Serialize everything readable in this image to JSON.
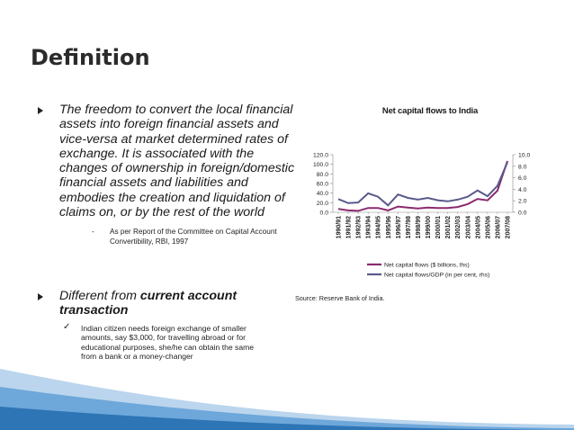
{
  "slide": {
    "title": "Definition",
    "bullet1": {
      "text": "The freedom to convert the local financial assets into foreign financial assets and vice-versa at market determined rates of exchange. It is associated with the changes of ownership in foreign/domestic financial assets and liabilities and embodies the creation and liquidation of claims on, or by the rest of the world",
      "sub_marker": "-",
      "sub_text": "As per Report of the Committee on Capital Account Convertibility, RBI, 1997"
    },
    "bullet2": {
      "text_prefix": "Different from ",
      "text_bold": "current account transaction",
      "sub_marker": "✓",
      "sub_text": "Indian citizen needs foreign exchange of smaller amounts, say $3,000, for travelling abroad or for educational purposes, she/he can obtain the same from a bank or a money-changer"
    },
    "source": "Source: Reserve Bank of India."
  },
  "chart_data": {
    "type": "line",
    "title": "Net capital flows to India",
    "categories": [
      "1990/91",
      "1991/92",
      "1992/93",
      "1993/94",
      "1994/95",
      "1995/96",
      "1996/97",
      "1997/98",
      "1998/99",
      "1999/00",
      "2000/01",
      "2001/02",
      "2002/03",
      "2003/04",
      "2004/05",
      "2005/06",
      "2006/07",
      "2007/08"
    ],
    "series": [
      {
        "name": "Net capital flows ($ billions, lhs)",
        "axis": "left",
        "color": "#8b2a6e",
        "values": [
          7,
          4,
          3,
          9,
          9,
          4,
          12,
          10,
          8,
          10,
          9,
          9,
          11,
          17,
          28,
          25,
          45,
          107
        ]
      },
      {
        "name": "Net capital flows/GDP (in per cent, rhs)",
        "axis": "right",
        "color": "#5a5a8c",
        "values": [
          2.3,
          1.6,
          1.7,
          3.3,
          2.7,
          1.2,
          3.1,
          2.5,
          2.2,
          2.5,
          2.1,
          1.9,
          2.2,
          2.7,
          3.8,
          2.8,
          4.6,
          8.7
        ]
      }
    ],
    "y_left": {
      "ticks": [
        "120.0",
        "100.0",
        "80.0",
        "60.0",
        "40.0",
        "20.0",
        "0.0"
      ],
      "min": 0,
      "max": 120
    },
    "y_right": {
      "ticks": [
        "10.0",
        "8.0",
        "6.0",
        "4.0",
        "2.0",
        "0.0"
      ],
      "min": 0,
      "max": 10
    },
    "legend": "bottom"
  },
  "colors": {
    "accent": "#5b9bd5",
    "accent_dark": "#2e75b6"
  }
}
